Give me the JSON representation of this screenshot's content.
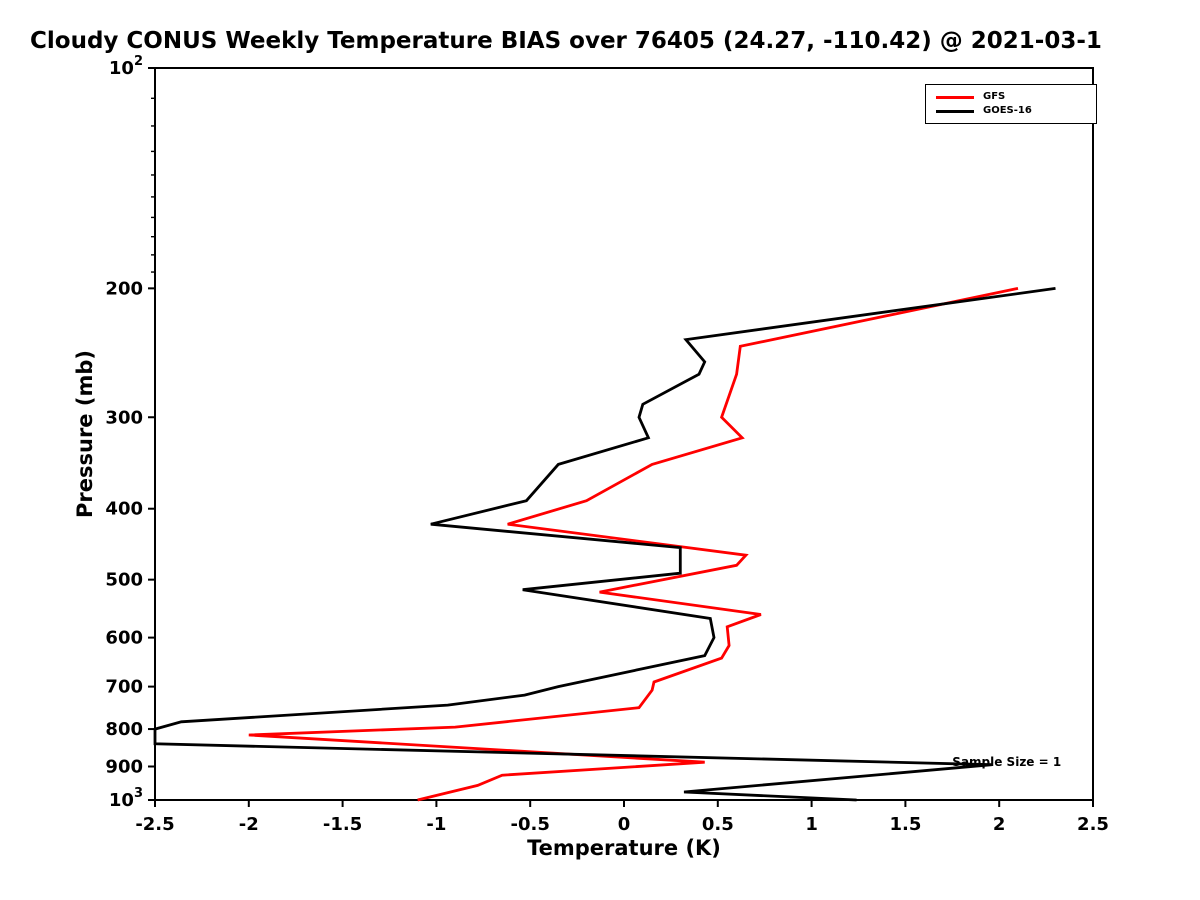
{
  "chart_data": {
    "type": "line",
    "title": "Cloudy CONUS Weekly Temperature BIAS over 76405 (24.27, -110.42) @ 2021-03-1",
    "xlabel": "Temperature (K)",
    "ylabel": "Pressure (mb)",
    "grid": false,
    "legend_position": "upper right",
    "x_axis": {
      "min": -2.5,
      "max": 2.5,
      "ticks": [
        {
          "v": -2.5,
          "label": "-2.5"
        },
        {
          "v": -2,
          "label": "-2"
        },
        {
          "v": -1.5,
          "label": "-1.5"
        },
        {
          "v": -1,
          "label": "-1"
        },
        {
          "v": -0.5,
          "label": "-0.5"
        },
        {
          "v": 0,
          "label": "0"
        },
        {
          "v": 0.5,
          "label": "0.5"
        },
        {
          "v": 1,
          "label": "1"
        },
        {
          "v": 1.5,
          "label": "1.5"
        },
        {
          "v": 2,
          "label": "2"
        },
        {
          "v": 2.5,
          "label": "2.5"
        }
      ]
    },
    "y_axis": {
      "scale": "log",
      "inverted": true,
      "min_mb": 100,
      "max_mb": 1000,
      "ticks": [
        {
          "mb": 100,
          "label": "10^2"
        },
        {
          "mb": 200,
          "label": "200"
        },
        {
          "mb": 300,
          "label": "300"
        },
        {
          "mb": 400,
          "label": "400"
        },
        {
          "mb": 500,
          "label": "500"
        },
        {
          "mb": 600,
          "label": "600"
        },
        {
          "mb": 700,
          "label": "700"
        },
        {
          "mb": 800,
          "label": "800"
        },
        {
          "mb": 900,
          "label": "900"
        },
        {
          "mb": 1000,
          "label": "10^3"
        }
      ],
      "minor_ticks_mb": [
        110,
        120,
        130,
        140,
        150,
        160,
        170,
        180,
        190
      ]
    },
    "point_format": "[pressure_mb, bias_K]",
    "series": [
      {
        "name": "GFS",
        "color": "#ff0000",
        "points": [
          [
            200,
            2.1
          ],
          [
            240,
            0.62
          ],
          [
            262,
            0.6
          ],
          [
            300,
            0.52
          ],
          [
            320,
            0.63
          ],
          [
            348,
            0.15
          ],
          [
            390,
            -0.2
          ],
          [
            420,
            -0.62
          ],
          [
            463,
            0.65
          ],
          [
            478,
            0.6
          ],
          [
            520,
            -0.13
          ],
          [
            558,
            0.73
          ],
          [
            580,
            0.55
          ],
          [
            615,
            0.56
          ],
          [
            640,
            0.52
          ],
          [
            690,
            0.16
          ],
          [
            708,
            0.15
          ],
          [
            748,
            0.08
          ],
          [
            795,
            -0.9
          ],
          [
            815,
            -2.0
          ],
          [
            888,
            0.43
          ],
          [
            925,
            -0.65
          ],
          [
            955,
            -0.78
          ],
          [
            1000,
            -1.1
          ]
        ]
      },
      {
        "name": "GOES-16",
        "color": "#000000",
        "points": [
          [
            200,
            2.3
          ],
          [
            235,
            0.33
          ],
          [
            252,
            0.43
          ],
          [
            262,
            0.4
          ],
          [
            288,
            0.1
          ],
          [
            300,
            0.08
          ],
          [
            320,
            0.13
          ],
          [
            348,
            -0.35
          ],
          [
            390,
            -0.52
          ],
          [
            420,
            -1.03
          ],
          [
            452,
            0.3
          ],
          [
            490,
            0.3
          ],
          [
            516,
            -0.54
          ],
          [
            565,
            0.46
          ],
          [
            600,
            0.48
          ],
          [
            635,
            0.43
          ],
          [
            700,
            -0.35
          ],
          [
            719,
            -0.53
          ],
          [
            742,
            -0.94
          ],
          [
            782,
            -2.36
          ],
          [
            800,
            -2.5
          ],
          [
            838,
            -2.5
          ],
          [
            895,
            1.96
          ],
          [
            975,
            0.32
          ],
          [
            1000,
            1.24
          ]
        ]
      }
    ],
    "annotation": {
      "text": "Sample Size = 1",
      "x_K": 1.75,
      "pressure_mb": 885
    }
  }
}
